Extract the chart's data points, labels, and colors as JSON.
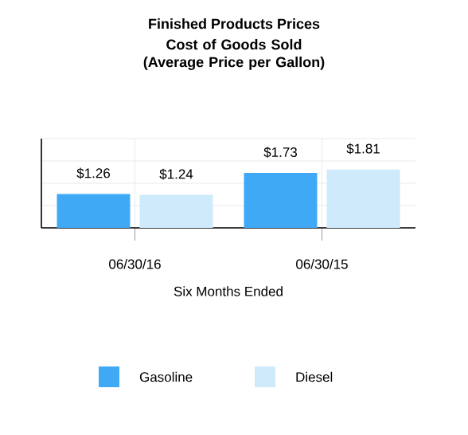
{
  "chart_data": {
    "type": "bar",
    "title": "Finished Products Prices",
    "subtitle": "Cost of Goods Sold (Average Price per Gallon)",
    "xlabel": "Six Months Ended",
    "categories": [
      "06/30/16",
      "06/30/15"
    ],
    "series": [
      {
        "name": "Gasoline",
        "color": "#3fa9f5",
        "values": [
          1.26,
          1.73
        ],
        "value_labels": [
          "$1.26",
          "$1.73"
        ]
      },
      {
        "name": "Diesel",
        "color": "#cfeafb",
        "values": [
          1.24,
          1.81
        ],
        "value_labels": [
          "$1.24",
          "$1.81"
        ]
      }
    ],
    "ylim": [
      0.5,
      2.5
    ],
    "yticks": [
      {
        "value": 0.5,
        "label": null
      },
      {
        "value": 1.0,
        "label": null
      },
      {
        "value": 1.5,
        "label": null
      },
      {
        "value": 2.0,
        "label": null
      },
      {
        "value": 2.5,
        "label": null
      }
    ],
    "tick_labels": "x",
    "grid": true,
    "legend": "bottom"
  }
}
